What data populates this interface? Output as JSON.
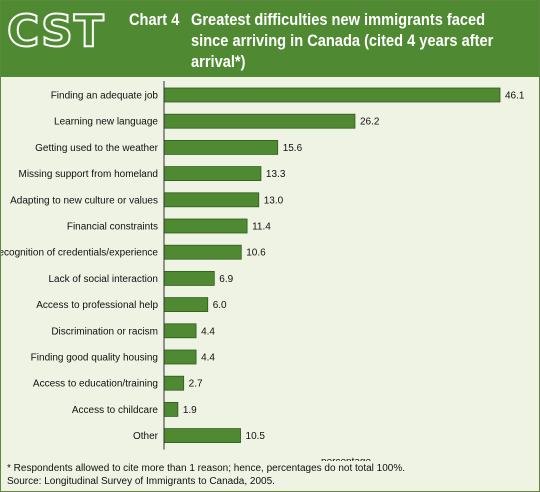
{
  "header": {
    "logo": "CST",
    "chart_number": "Chart 4",
    "title": "Greatest difficulties new immigrants faced since arriving in Canada (cited 4 years after arrival*)"
  },
  "colors": {
    "bar": "#4f8a32",
    "header": "#4f8a32",
    "background": "#eef3e3"
  },
  "chart_data": {
    "type": "bar",
    "orientation": "horizontal",
    "categories": [
      "Finding an adequate job",
      "Learning new language",
      "Getting used to the weather",
      "Missing support from homeland",
      "Adapting to new culture or values",
      "Financial constraints",
      "Recognition of credentials/experience",
      "Lack of social interaction",
      "Access to professional help",
      "Discrimination or racism",
      "Finding good quality housing",
      "Access to education/training",
      "Access to childcare",
      "Other"
    ],
    "values": [
      46.1,
      26.2,
      15.6,
      13.3,
      13.0,
      11.4,
      10.6,
      6.9,
      6.0,
      4.4,
      4.4,
      2.7,
      1.9,
      10.5
    ],
    "value_labels": [
      "46.1",
      "26.2",
      "15.6",
      "13.3",
      "13.0",
      "11.4",
      "10.6",
      "6.9",
      "6.0",
      "4.4",
      "4.4",
      "2.7",
      "1.9",
      "10.5"
    ],
    "xlabel": "percentage",
    "xlim": [
      0,
      46.1
    ],
    "grid": false,
    "legend": "none"
  },
  "footer": {
    "footnote": "* Respondents allowed to cite more than 1 reason; hence, percentages do not total 100%.",
    "source": "Source: Longitudinal Survey of Immigrants to Canada, 2005."
  }
}
